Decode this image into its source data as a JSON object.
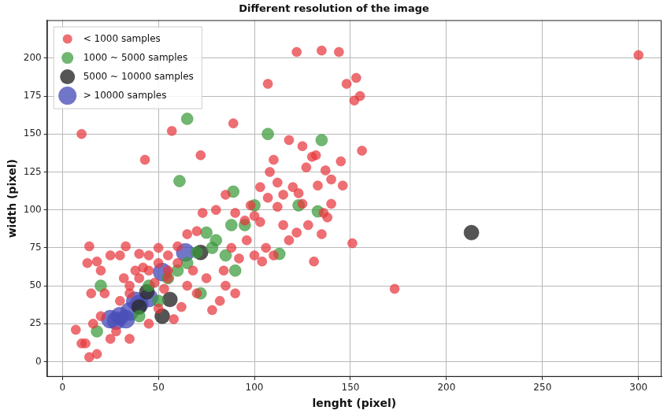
{
  "chart_data": {
    "type": "scatter",
    "title": "Different resolution of the image",
    "x_label": "lenght (pixel)",
    "y_label": "width (pixel)",
    "xlim": [
      -8,
      312
    ],
    "ylim": [
      -10,
      225
    ],
    "xticks": [
      0,
      50,
      100,
      150,
      200,
      250,
      300
    ],
    "yticks": [
      0,
      25,
      50,
      75,
      100,
      125,
      150,
      175,
      200
    ],
    "grid": true,
    "legend": "upper left",
    "marker": "circle",
    "series": [
      {
        "name": "< 1000 samples",
        "color": "#e8383d",
        "x": [
          10,
          43,
          57,
          72,
          89,
          107,
          122,
          135,
          144,
          148,
          152,
          153,
          155,
          156,
          300,
          151,
          173,
          131,
          145,
          140,
          137,
          132,
          130,
          125,
          120,
          118,
          110,
          112,
          115,
          108,
          103,
          100,
          95,
          98,
          125,
          128,
          122,
          118,
          115,
          135,
          136,
          133,
          146,
          140,
          104,
          96,
          90,
          85,
          80,
          73,
          70,
          65,
          60,
          55,
          50,
          45,
          40,
          33,
          30,
          25,
          14,
          13,
          18,
          20,
          22,
          15,
          12,
          14,
          18,
          16,
          25,
          28,
          35,
          45,
          50,
          55,
          60,
          65,
          70,
          75,
          78,
          82,
          85,
          90,
          92,
          88,
          84,
          100,
          106,
          110,
          32,
          35,
          38,
          42,
          48,
          53,
          58,
          62,
          68,
          7,
          10,
          20,
          30,
          35,
          40,
          45,
          50,
          55,
          112,
          123,
          127,
          138,
          107,
          103
        ],
        "y": [
          150,
          133,
          152,
          136,
          157,
          183,
          204,
          205,
          204,
          183,
          172,
          187,
          175,
          139,
          202,
          78,
          48,
          66,
          132,
          120,
          126,
          136,
          135,
          142,
          115,
          146,
          133,
          118,
          110,
          125,
          115,
          96,
          93,
          103,
          104,
          90,
          85,
          80,
          90,
          84,
          98,
          116,
          116,
          104,
          66,
          80,
          98,
          110,
          100,
          98,
          86,
          84,
          76,
          70,
          75,
          70,
          71,
          76,
          70,
          70,
          76,
          65,
          66,
          60,
          45,
          45,
          12,
          3,
          5,
          25,
          15,
          20,
          15,
          25,
          35,
          55,
          65,
          50,
          45,
          55,
          34,
          40,
          50,
          45,
          68,
          75,
          60,
          70,
          75,
          70,
          55,
          50,
          60,
          62,
          52,
          48,
          28,
          36,
          60,
          21,
          12,
          30,
          40,
          45,
          55,
          60,
          65,
          60,
          102,
          111,
          128,
          95,
          108,
          92
        ]
      },
      {
        "name": "1000 ~ 5000 samples",
        "color": "#3a9a3a",
        "x": [
          65,
          61,
          107,
          135,
          89,
          100,
          113,
          133,
          75,
          88,
          80,
          70,
          60,
          55,
          45,
          20,
          18,
          123,
          85,
          95,
          72,
          50,
          65,
          78,
          90,
          40
        ],
        "y": [
          160,
          119,
          150,
          146,
          112,
          103,
          71,
          99,
          85,
          90,
          80,
          72,
          60,
          55,
          50,
          50,
          20,
          103,
          70,
          90,
          45,
          40,
          65,
          75,
          60,
          30
        ]
      },
      {
        "name": "5000 ~ 10000 samples",
        "color": "#2b2b2b",
        "x": [
          213,
          72,
          56,
          44,
          52,
          40
        ],
        "y": [
          85,
          72,
          41,
          46,
          30,
          36
        ]
      },
      {
        "name": "> 10000 samples",
        "color": "#4a4fb8",
        "x": [
          64,
          52,
          45,
          40,
          35,
          30,
          28,
          33,
          38,
          25
        ],
        "y": [
          72,
          59,
          42,
          38,
          33,
          30,
          27,
          28,
          40,
          28
        ]
      }
    ]
  }
}
